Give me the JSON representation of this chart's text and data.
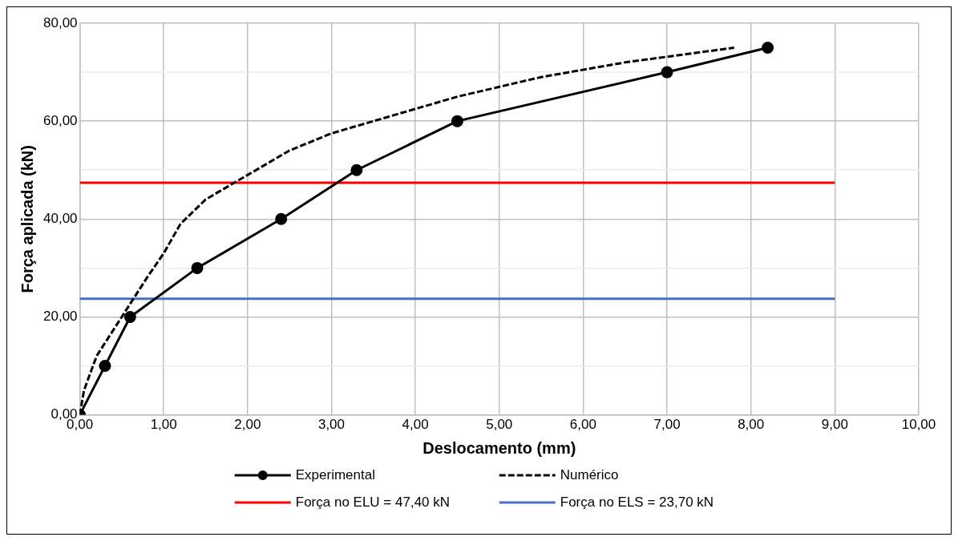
{
  "chart_data": {
    "type": "line",
    "xlabel": "Deslocamento (mm)",
    "ylabel": "Força aplicada (kN)",
    "xlim": [
      0,
      10
    ],
    "ylim": [
      0,
      80
    ],
    "xticks": [
      {
        "value": 0,
        "label": "0,00"
      },
      {
        "value": 1,
        "label": "1,00"
      },
      {
        "value": 2,
        "label": "2,00"
      },
      {
        "value": 3,
        "label": "3,00"
      },
      {
        "value": 4,
        "label": "4,00"
      },
      {
        "value": 5,
        "label": "5,00"
      },
      {
        "value": 6,
        "label": "6,00"
      },
      {
        "value": 7,
        "label": "7,00"
      },
      {
        "value": 8,
        "label": "8,00"
      },
      {
        "value": 9,
        "label": "9,00"
      },
      {
        "value": 10,
        "label": "10,00"
      }
    ],
    "yticks": [
      {
        "value": 0,
        "label": "0,00"
      },
      {
        "value": 10,
        "label": null
      },
      {
        "value": 20,
        "label": "20,00"
      },
      {
        "value": 30,
        "label": null
      },
      {
        "value": 40,
        "label": "40,00"
      },
      {
        "value": 50,
        "label": null
      },
      {
        "value": 60,
        "label": "60,00"
      },
      {
        "value": 70,
        "label": null
      },
      {
        "value": 80,
        "label": "80,00"
      }
    ],
    "grid": true,
    "legend": "bottom",
    "series": [
      {
        "name": "Experimental",
        "color": "#000000",
        "marker": "circle",
        "line_style": "solid",
        "x": [
          0,
          0.3,
          0.6,
          1.4,
          2.4,
          3.3,
          4.5,
          7,
          8.2
        ],
        "values": [
          0,
          10,
          20,
          30,
          40,
          50,
          60,
          70,
          75
        ]
      },
      {
        "name": "Numérico",
        "color": "#000000",
        "marker": "none",
        "line_style": "dashed",
        "x": [
          0,
          0.05,
          0.2,
          0.5,
          0.8,
          1.0,
          1.2,
          1.5,
          2.0,
          2.5,
          3.0,
          3.5,
          4.5,
          5.5,
          6.5,
          7.8
        ],
        "values": [
          0,
          5,
          12,
          20,
          28,
          33,
          39,
          44,
          49,
          54,
          57.5,
          60,
          65,
          69,
          72,
          75
        ]
      },
      {
        "name": "Força no ELU = 47,40 kN",
        "color": "#ff0000",
        "marker": "none",
        "line_style": "solid",
        "x": [
          0,
          9
        ],
        "values": [
          47.4,
          47.4
        ]
      },
      {
        "name": "Força no ELS = 23,70 kN",
        "color": "#4472c4",
        "marker": "none",
        "line_style": "solid",
        "x": [
          0,
          9
        ],
        "values": [
          23.7,
          23.7
        ]
      }
    ]
  }
}
